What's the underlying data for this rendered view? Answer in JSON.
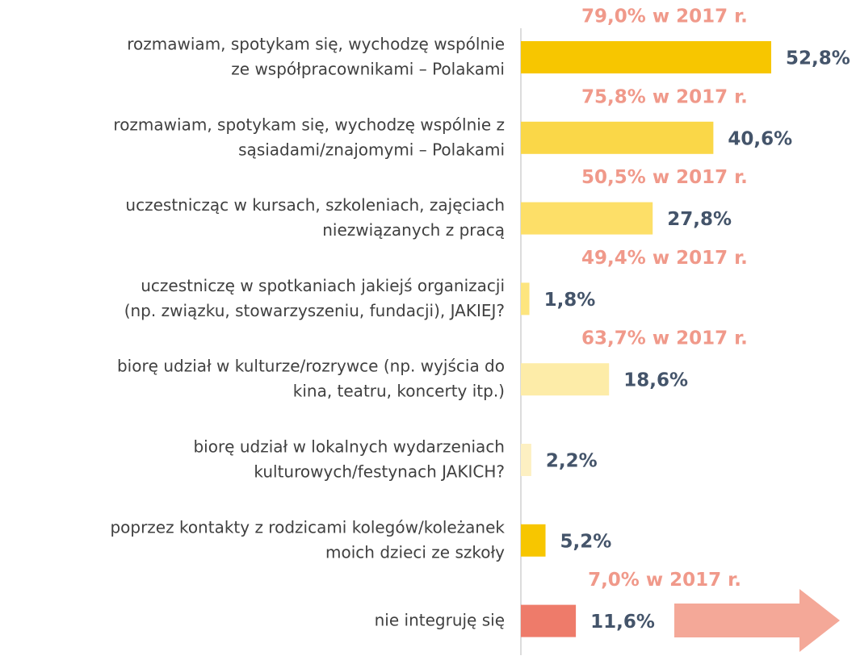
{
  "chart_data": {
    "type": "bar",
    "orientation": "horizontal",
    "categories": [
      "rozmawiam, spotykam się, wychodzę wspólnie\nze współpracownikami – Polakami",
      "rozmawiam, spotykam się, wychodzę wspólnie z\nsąsiadami/znajomymi – Polakami",
      "uczestnicząc w kursach, szkoleniach, zajęciach\nniezwiązanych z pracą",
      "uczestniczę w spotkaniach jakiejś organizacji\n(np. związku, stowarzyszeniu, fundacji), JAKIEJ?",
      "biorę udział w kulturze/rozrywce (np. wyjścia do\nkina, teatru, koncerty itp.)",
      "biorę udział w lokalnych wydarzeniach\nkulturowych/festynach JAKICH?",
      "poprzez kontakty z rodzicami kolegów/koleżanek\nmoich dzieci ze szkoły",
      "nie integruję się"
    ],
    "values": [
      52.8,
      40.6,
      27.8,
      1.8,
      18.6,
      2.2,
      5.2,
      11.6
    ],
    "value_labels": [
      "52,8%",
      "40,6%",
      "27,8%",
      "1,8%",
      "18,6%",
      "2,2%",
      "5,2%",
      "11,6%"
    ],
    "colors": [
      "#f7c600",
      "#fad748",
      "#fddf68",
      "#fde57e",
      "#fdeca8",
      "#fdf0c2",
      "#f7c600",
      "#ee7b6a"
    ],
    "annotations": [
      "79,0% w 2017 r.",
      "75,8% w 2017 r.",
      "50,5% w 2017 r.",
      "49,4% w 2017 r.",
      "63,7% w 2017 r.",
      null,
      null,
      "7,0% w 2017 r."
    ]
  }
}
